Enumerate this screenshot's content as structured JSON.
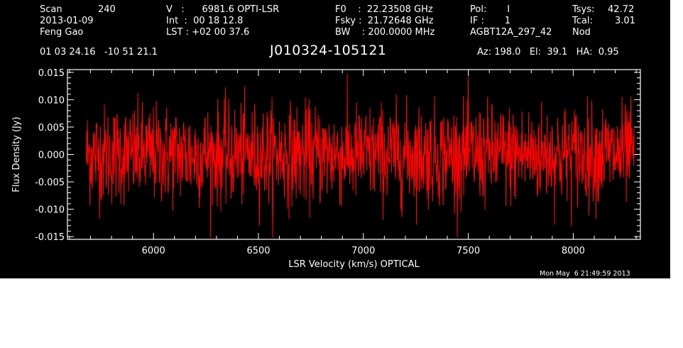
{
  "header": {
    "scan_label": "Scan",
    "scan_value": "240",
    "date": "2013-01-09",
    "observer": "Feng Gao",
    "v_line": "V   :      6981.6 OPTI-LSR",
    "int_line": "Int  :  00 18 12.8",
    "lst_line": "LST : +02 00 37.6",
    "f0_line": "F0    :  22.23508 GHz",
    "fsky_line": "Fsky :  21.72648 GHz",
    "bw_line": "BW    : 200.0000 MHz",
    "pol_line": "Pol:       I",
    "if_line": "IF :       1",
    "project": "AGBT12A_297_42",
    "tsys_label": "Tsys:",
    "tsys_value": "42.72",
    "tcal_label": "Tcal:",
    "tcal_value": "3.01",
    "mode": "Nod",
    "coords": "01 03 24.16   -10 51 21.1",
    "source": "J010324-105121",
    "azelha": "Az: 198.0   El:  39.1   HA:  0.95"
  },
  "timestamp": "Mon May  6 21:49:59 2013",
  "colors": {
    "background": "#000000",
    "axes": "#ffffff",
    "spectrum": "#ff0000"
  },
  "chart_data": {
    "type": "line",
    "xlabel": "LSR Velocity (km/s) OPTICAL",
    "ylabel": "Flux Density (Jy)",
    "xlim": [
      5590,
      8320
    ],
    "ylim": [
      -0.0155,
      0.0155
    ],
    "x_ticks": [
      6000,
      6500,
      7000,
      7500,
      8000
    ],
    "y_ticks": [
      -0.015,
      -0.01,
      -0.005,
      0.0,
      0.005,
      0.01,
      0.015
    ],
    "y_tick_labels": [
      "-0.015",
      "-0.010",
      "-0.005",
      "0.000",
      "0.005",
      "0.010",
      "0.015"
    ],
    "grid": false,
    "series": [
      {
        "x_start": 5680,
        "x_end": 8290,
        "noise_rms": 0.0045,
        "mean": 0.0
      }
    ]
  }
}
